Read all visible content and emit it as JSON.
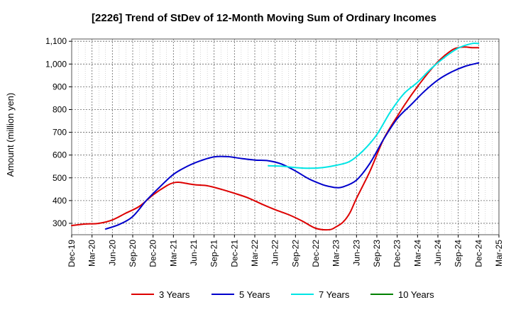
{
  "chart_data": {
    "type": "line",
    "title": "[2226]  Trend of StDev of 12-Month Moving Sum of Ordinary Incomes",
    "xlabel": "",
    "ylabel": "Amount (million yen)",
    "ylim": [
      250,
      1110
    ],
    "yticks": [
      300,
      400,
      500,
      600,
      700,
      800,
      900,
      1000,
      1100
    ],
    "ytick_labels": [
      "300",
      "400",
      "500",
      "600",
      "700",
      "800",
      "900",
      "1,000",
      "1,100"
    ],
    "xlim": [
      0,
      63
    ],
    "xticks": [
      0,
      3,
      6,
      9,
      12,
      15,
      18,
      21,
      24,
      27,
      30,
      33,
      36,
      39,
      42,
      45,
      48,
      51,
      54,
      57,
      60,
      63
    ],
    "xtick_labels": [
      "Dec-19",
      "Mar-20",
      "Jun-20",
      "Sep-20",
      "Dec-20",
      "Mar-21",
      "Jun-21",
      "Sep-21",
      "Dec-21",
      "Mar-22",
      "Jun-22",
      "Sep-22",
      "Dec-22",
      "Mar-23",
      "Jun-23",
      "Sep-23",
      "Dec-23",
      "Mar-24",
      "Jun-24",
      "Sep-24",
      "Dec-24",
      "Mar-25"
    ],
    "grid": true,
    "legend_position": "bottom",
    "series": [
      {
        "name": "3 Years",
        "color": "#dd0000",
        "x": [
          0,
          2,
          4,
          6,
          8,
          10,
          12,
          14,
          15,
          16,
          18,
          20,
          22,
          24,
          26,
          28,
          30,
          32,
          34,
          36,
          38,
          39,
          40,
          41,
          42,
          44,
          46,
          48,
          50,
          52,
          54,
          56,
          57,
          58,
          59,
          60
        ],
        "values": [
          290,
          297,
          300,
          315,
          345,
          375,
          425,
          465,
          478,
          480,
          470,
          465,
          450,
          432,
          412,
          385,
          360,
          338,
          310,
          278,
          272,
          285,
          305,
          345,
          410,
          530,
          670,
          770,
          860,
          940,
          1010,
          1060,
          1072,
          1075,
          1072,
          1072
        ]
      },
      {
        "name": "5 Years",
        "color": "#0000cc",
        "x": [
          5,
          7,
          9,
          11,
          13,
          15,
          17,
          19,
          21,
          23,
          25,
          27,
          29,
          31,
          33,
          35,
          37,
          38,
          39,
          40,
          42,
          44,
          46,
          48,
          50,
          52,
          54,
          56,
          58,
          60
        ],
        "values": [
          275,
          295,
          330,
          400,
          460,
          515,
          550,
          575,
          592,
          593,
          585,
          578,
          575,
          560,
          530,
          495,
          470,
          462,
          457,
          460,
          490,
          565,
          670,
          760,
          820,
          880,
          930,
          965,
          990,
          1005
        ]
      },
      {
        "name": "7 Years",
        "color": "#00e5e5",
        "x": [
          29,
          31,
          33,
          35,
          37,
          39,
          41,
          43,
          45,
          47,
          49,
          51,
          53,
          55,
          57,
          59,
          60
        ],
        "values": [
          553,
          551,
          545,
          542,
          545,
          555,
          572,
          620,
          690,
          790,
          870,
          920,
          980,
          1030,
          1070,
          1090,
          1090
        ]
      },
      {
        "name": "10 Years",
        "color": "#008000",
        "x": [],
        "values": []
      }
    ]
  }
}
